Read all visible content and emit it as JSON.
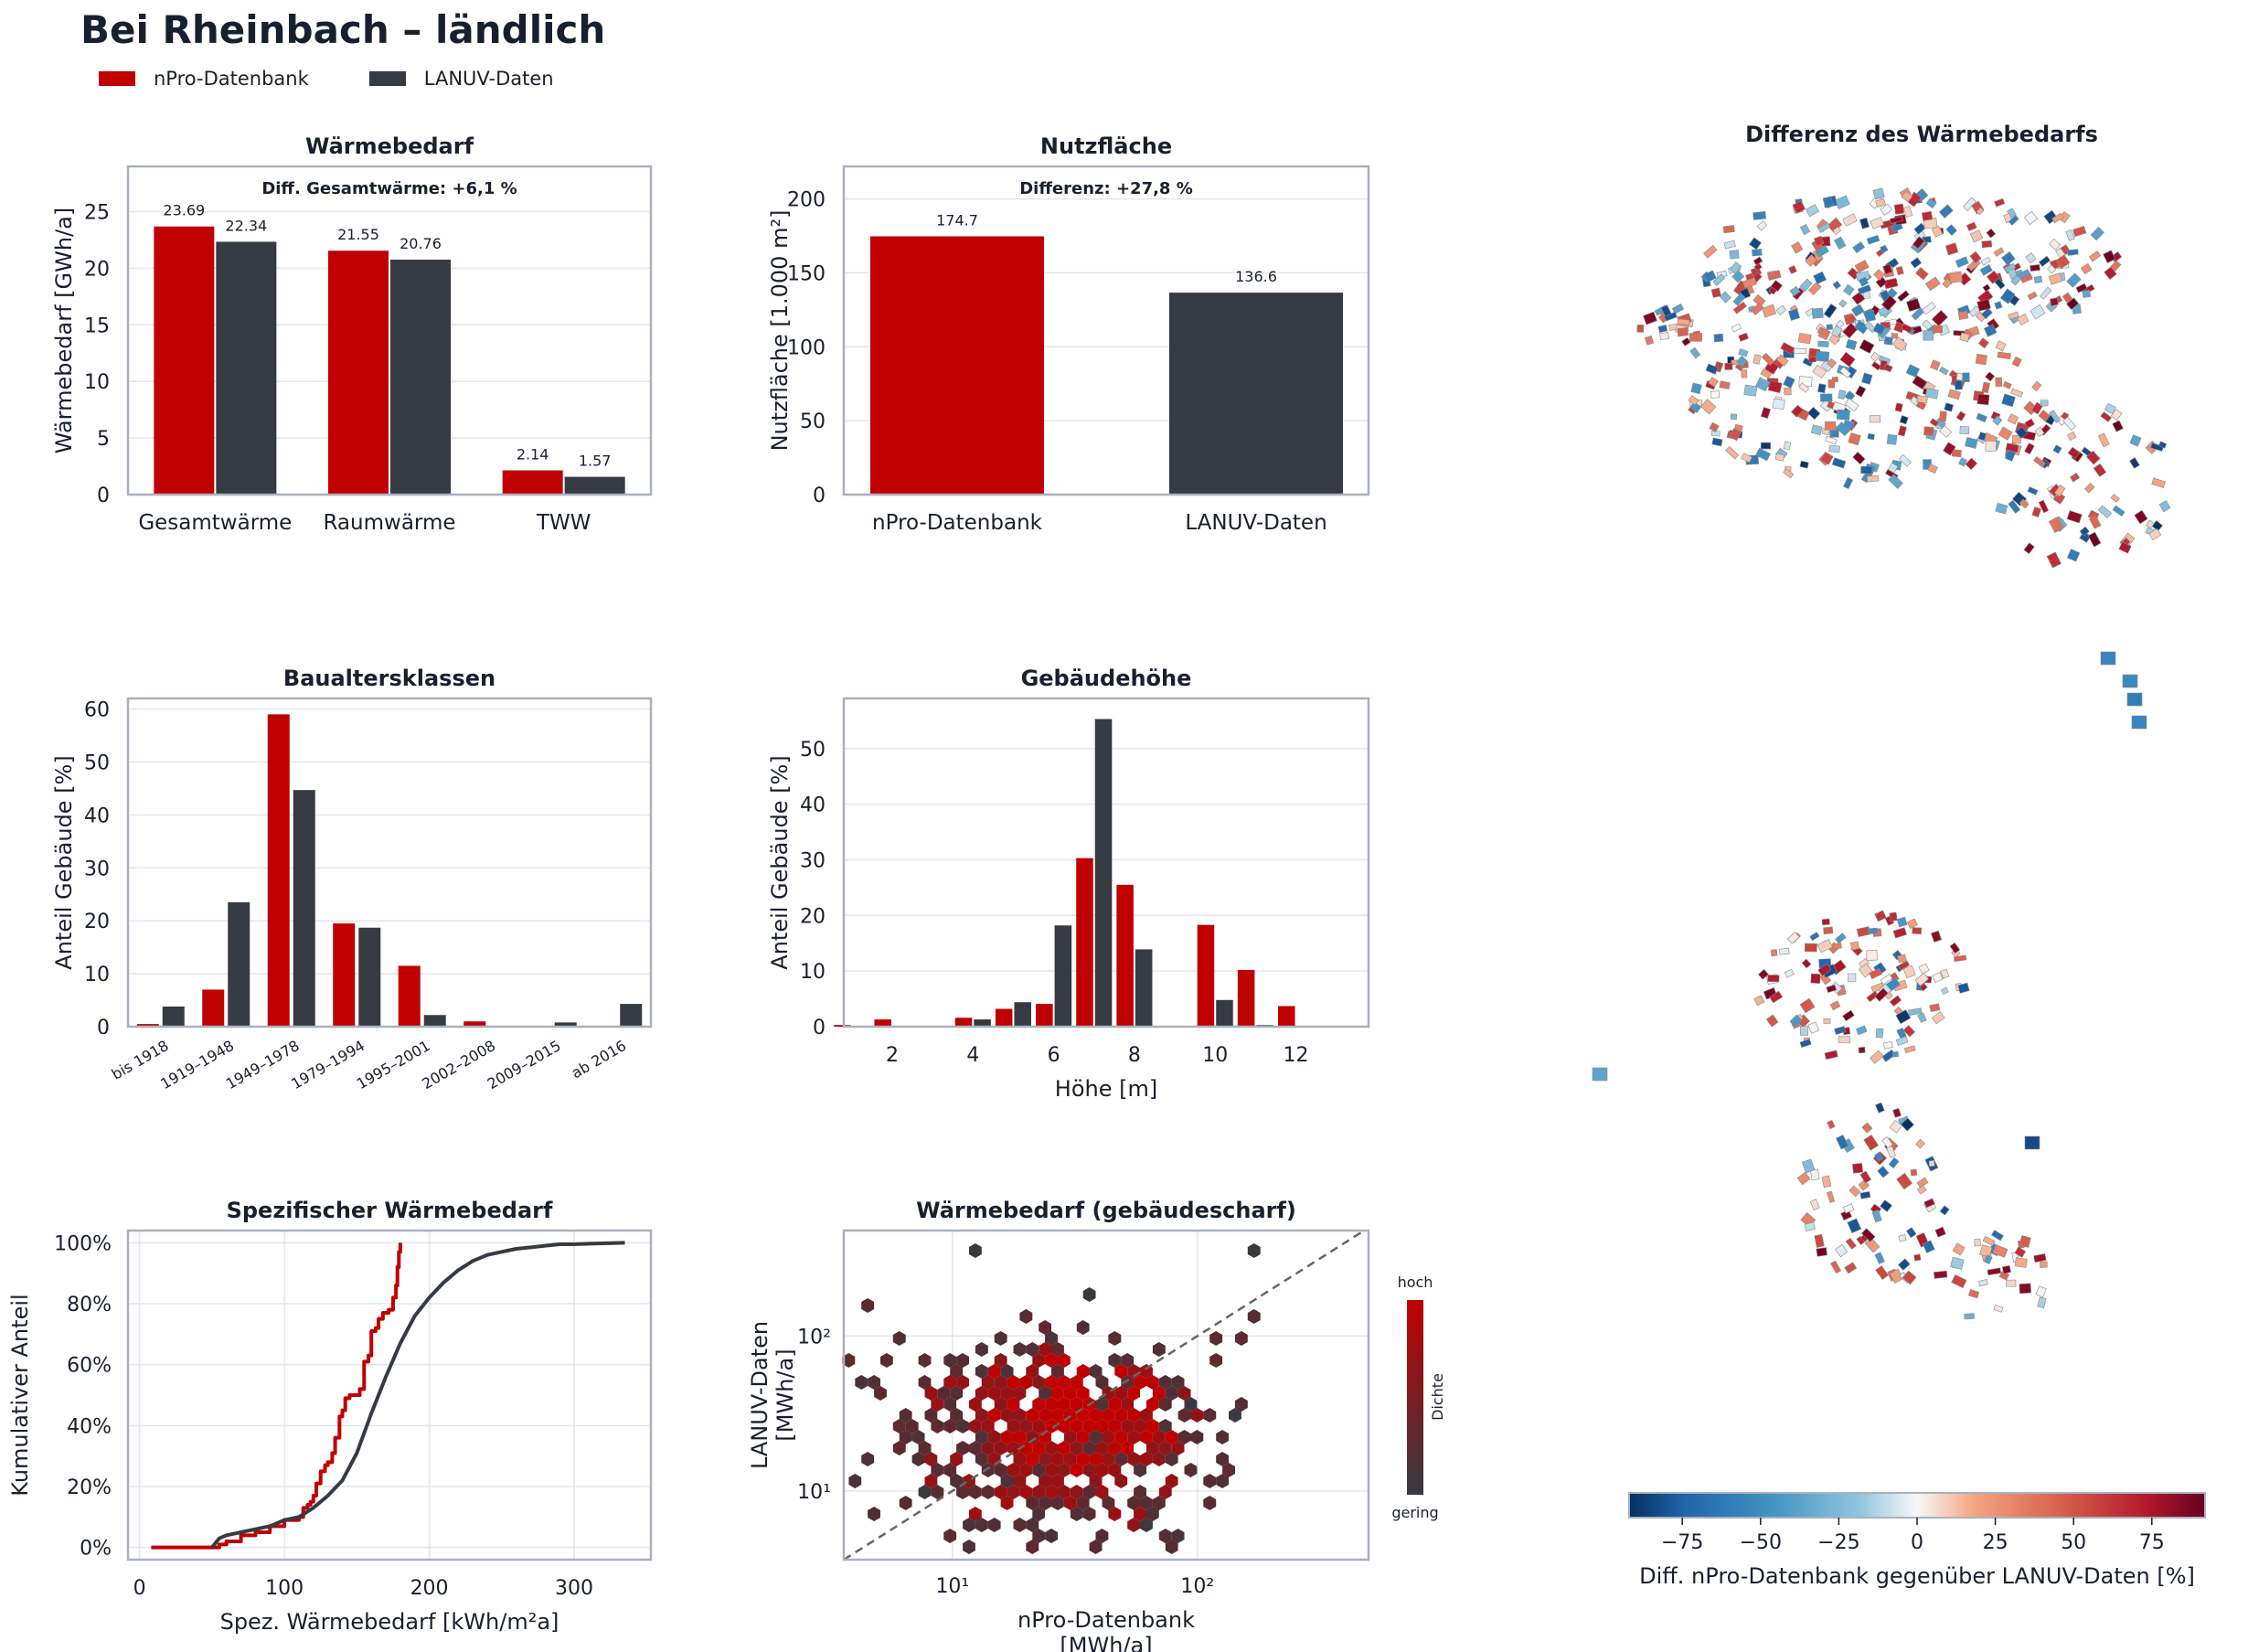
{
  "page": {
    "title": "Bei Rheinbach – ländlich",
    "legend": [
      {
        "label": "nPro-Datenbank",
        "color": "#c00000"
      },
      {
        "label": "LANUV-Daten",
        "color": "#363a42"
      }
    ]
  },
  "colors": {
    "npro": "#c00000",
    "lanuv": "#363a42",
    "frame": "#a9b0bf",
    "grid": "#e3e6ec",
    "text": "#1a1f2e"
  },
  "chart_data": [
    {
      "id": "waermebedarf",
      "type": "bar",
      "title": "Wärmebedarf",
      "annotation": "Diff. Gesamtwärme: +6,1 %",
      "ylabel": "Wärmebedarf [GWh/a]",
      "xlabel": "",
      "ylim": [
        0,
        29
      ],
      "yticks": [
        "0",
        "5",
        "10",
        "15",
        "20",
        "25"
      ],
      "categories": [
        "Gesamtwärme",
        "Raumwärme",
        "TWW"
      ],
      "series": [
        {
          "name": "nPro-Datenbank",
          "values": [
            23.69,
            21.55,
            2.14
          ],
          "labels": [
            "23.69",
            "21.55",
            "2.14"
          ]
        },
        {
          "name": "LANUV-Daten",
          "values": [
            22.34,
            20.76,
            1.57
          ],
          "labels": [
            "22.34",
            "20.76",
            "1.57"
          ]
        }
      ]
    },
    {
      "id": "nutzflaeche",
      "type": "bar",
      "title": "Nutzfläche",
      "annotation": "Differenz: +27,8 %",
      "ylabel": "Nutzfläche [1.000 m²]",
      "xlabel": "",
      "ylim": [
        0,
        222
      ],
      "yticks": [
        "0",
        "50",
        "100",
        "150",
        "200"
      ],
      "categories": [
        "nPro-Datenbank",
        "LANUV-Daten"
      ],
      "values": [
        174.7,
        136.6
      ],
      "labels": [
        "174.7",
        "136.6"
      ]
    },
    {
      "id": "baualtersklassen",
      "type": "bar",
      "title": "Baualtersklassen",
      "ylabel": "Anteil Gebäude [%]",
      "xlabel": "",
      "ylim": [
        0,
        62
      ],
      "yticks": [
        "0",
        "10",
        "20",
        "30",
        "40",
        "50",
        "60"
      ],
      "categories": [
        "bis 1918",
        "1919–1948",
        "1949–1978",
        "1979–1994",
        "1995–2001",
        "2002–2008",
        "2009–2015",
        "ab 2016"
      ],
      "series": [
        {
          "name": "nPro-Datenbank",
          "values": [
            0.5,
            7,
            59,
            19.5,
            11.5,
            1,
            0,
            0
          ]
        },
        {
          "name": "LANUV-Daten",
          "values": [
            3.8,
            23.5,
            44.7,
            18.7,
            2.2,
            0,
            0.8,
            4.3
          ]
        }
      ]
    },
    {
      "id": "gebaeudehoehe",
      "type": "bar",
      "title": "Gebäudehöhe",
      "ylabel": "Anteil Gebäude [%]",
      "xlabel": "Höhe [m]",
      "ylim": [
        0,
        59
      ],
      "xlim": [
        0.8,
        13.8
      ],
      "xticks": [
        "2",
        "4",
        "6",
        "8",
        "10",
        "12"
      ],
      "yticks": [
        "0",
        "10",
        "20",
        "30",
        "40",
        "50"
      ],
      "series": [
        {
          "name": "nPro-Datenbank",
          "x": [
            1,
            2,
            3,
            4,
            5,
            6,
            7,
            8,
            9,
            10,
            11,
            12
          ],
          "values": [
            0.3,
            1.3,
            0,
            1.6,
            3.2,
            4.1,
            30.3,
            25.5,
            0,
            18.3,
            10.2,
            3.7
          ]
        },
        {
          "name": "LANUV-Daten",
          "x": [
            1,
            2,
            3,
            4,
            5,
            6,
            7,
            8,
            9,
            10,
            11,
            12
          ],
          "values": [
            0,
            0,
            0,
            1.3,
            4.4,
            18.2,
            55.3,
            13.9,
            0,
            4.8,
            0.3,
            0
          ]
        }
      ]
    },
    {
      "id": "spezifisch",
      "type": "line",
      "title": "Spezifischer Wärmebedarf",
      "ylabel": "Kumulativer Anteil",
      "xlabel": "Spez. Wärmebedarf [kWh/m²a]",
      "xlim": [
        -8,
        353
      ],
      "ylim": [
        -0.04,
        1.04
      ],
      "xticks": [
        "0",
        "100",
        "200",
        "300"
      ],
      "yticks": [
        "0%",
        "20%",
        "40%",
        "60%",
        "80%",
        "100%"
      ],
      "series": [
        {
          "name": "nPro-Datenbank",
          "x": [
            8,
            30,
            55,
            60,
            70,
            80,
            90,
            100,
            110,
            113,
            116,
            118,
            120,
            122,
            125,
            128,
            130,
            133,
            135,
            138,
            140,
            142,
            145,
            148,
            152,
            155,
            158,
            160,
            163,
            165,
            168,
            170,
            172,
            175,
            177,
            178,
            179,
            180
          ],
          "y": [
            0.0,
            0.0,
            0.01,
            0.02,
            0.04,
            0.05,
            0.07,
            0.09,
            0.1,
            0.13,
            0.14,
            0.15,
            0.17,
            0.21,
            0.25,
            0.27,
            0.28,
            0.31,
            0.36,
            0.43,
            0.45,
            0.49,
            0.5,
            0.5,
            0.52,
            0.61,
            0.63,
            0.71,
            0.72,
            0.75,
            0.77,
            0.77,
            0.78,
            0.82,
            0.86,
            0.92,
            0.97,
            1.0
          ]
        },
        {
          "name": "LANUV-Daten",
          "x": [
            50,
            55,
            60,
            70,
            80,
            90,
            100,
            110,
            120,
            130,
            140,
            150,
            160,
            170,
            180,
            190,
            200,
            210,
            220,
            230,
            240,
            250,
            260,
            270,
            280,
            290,
            300,
            310,
            320,
            335
          ],
          "y": [
            0.0,
            0.03,
            0.04,
            0.05,
            0.06,
            0.07,
            0.09,
            0.1,
            0.13,
            0.17,
            0.22,
            0.31,
            0.44,
            0.56,
            0.67,
            0.76,
            0.82,
            0.87,
            0.91,
            0.94,
            0.96,
            0.97,
            0.98,
            0.985,
            0.99,
            0.995,
            0.995,
            0.997,
            0.998,
            1.0
          ]
        }
      ]
    },
    {
      "id": "gebaeudescharf",
      "type": "scatter",
      "title": "Wärmebedarf (gebäudescharf)",
      "xlabel": "nPro-Datenbank\n[MWh/a]",
      "ylabel": "LANUV-Daten\n[MWh/a]",
      "xscale": "log",
      "yscale": "log",
      "xlim": [
        3.6,
        500
      ],
      "ylim": [
        3.6,
        480
      ],
      "xticks": [
        "10¹",
        "10²"
      ],
      "yticks": [
        "10¹",
        "10²"
      ],
      "colorbar": {
        "label": "Dichte",
        "max_label": "hoch",
        "min_label": "gering"
      },
      "clusters": [
        {
          "cx": 35,
          "cy": 32,
          "sx": 0.22,
          "sy": 0.22,
          "n": 90,
          "density": 0.95
        },
        {
          "cx": 28,
          "cy": 24,
          "sx": 0.35,
          "sy": 0.32,
          "n": 180,
          "density": 0.6
        },
        {
          "cx": 22,
          "cy": 20,
          "sx": 0.55,
          "sy": 0.5,
          "n": 260,
          "density": 0.15
        }
      ],
      "outliers": [
        [
          12,
          380
        ],
        [
          35,
          200
        ],
        [
          170,
          380
        ],
        [
          7.5,
          10
        ],
        [
          22,
          7
        ],
        [
          60,
          6
        ],
        [
          90,
          35
        ],
        [
          110,
          33
        ],
        [
          150,
          33
        ]
      ]
    },
    {
      "id": "karte",
      "type": "heatmap",
      "title": "Differenz des Wärmebedarfs",
      "colorbar": {
        "label": "Diff. nPro-Datenbank gegenüber LANUV-Daten [%]",
        "range": [
          -92,
          92
        ],
        "ticks": [
          "−75",
          "−50",
          "−25",
          "0",
          "25",
          "50",
          "75"
        ],
        "tick_values": [
          -75,
          -50,
          -25,
          0,
          25,
          50,
          75
        ]
      }
    }
  ]
}
